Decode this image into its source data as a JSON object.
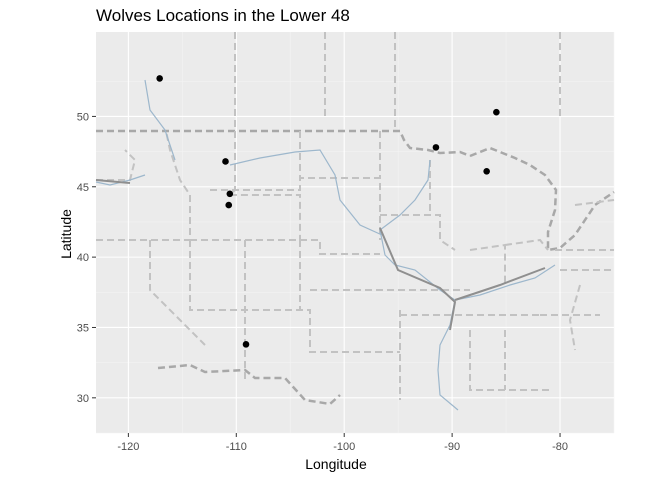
{
  "chart_data": {
    "type": "scatter",
    "title": "Wolves Locations in the Lower 48",
    "xlabel": "Longitude",
    "ylabel": "Latitude",
    "xlim": [
      -123,
      -75
    ],
    "ylim": [
      27.5,
      56
    ],
    "x_ticks": [
      -120,
      -110,
      -100,
      -90,
      -80
    ],
    "y_ticks": [
      30,
      35,
      40,
      45,
      50
    ],
    "x_tick_labels": [
      "-120",
      "-110",
      "-100",
      "-90",
      "-80"
    ],
    "y_tick_labels": [
      "30",
      "35",
      "40",
      "45",
      "50"
    ],
    "grid": true,
    "background_color": "#ebebeb",
    "point_color": "#000000",
    "points": [
      {
        "x": -117.1,
        "y": 52.7
      },
      {
        "x": -85.9,
        "y": 50.3
      },
      {
        "x": -111.0,
        "y": 46.8
      },
      {
        "x": -91.5,
        "y": 47.8
      },
      {
        "x": -86.8,
        "y": 46.1
      },
      {
        "x": -110.6,
        "y": 44.5
      },
      {
        "x": -110.7,
        "y": 43.7
      },
      {
        "x": -109.1,
        "y": 33.8
      }
    ]
  }
}
